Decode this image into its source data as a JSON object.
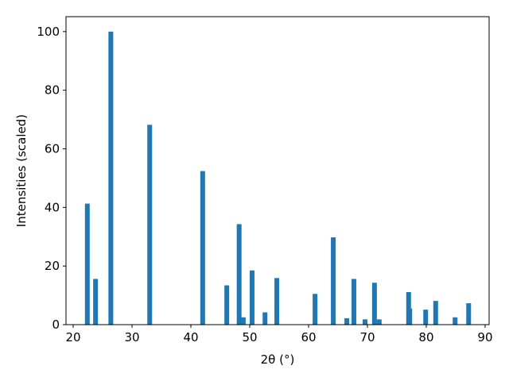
{
  "chart_data": {
    "type": "bar",
    "x_label": "2θ (°)",
    "y_label": "Intensities (scaled)",
    "x": [
      22.4,
      23.8,
      26.4,
      33.0,
      42.0,
      46.1,
      48.2,
      48.9,
      50.4,
      52.6,
      54.6,
      61.1,
      64.2,
      66.5,
      67.7,
      69.6,
      71.2,
      72.0,
      77.0,
      77.2,
      79.9,
      81.6,
      84.9,
      87.2
    ],
    "values": [
      41.3,
      15.6,
      100,
      68.2,
      52.4,
      13.4,
      34.3,
      2.5,
      18.5,
      4.2,
      15.9,
      10.5,
      29.8,
      2.2,
      15.6,
      1.8,
      14.3,
      1.8,
      11.1,
      5.5,
      5.1,
      8.1,
      2.5,
      7.3
    ],
    "color": "#1f77b4",
    "xlim": [
      18.78,
      90.68
    ],
    "xticks": [
      20,
      30,
      40,
      50,
      60,
      70,
      80,
      90
    ],
    "ylim": [
      0,
      105.1
    ],
    "yticks": [
      0,
      20,
      40,
      60,
      80,
      100
    ]
  }
}
